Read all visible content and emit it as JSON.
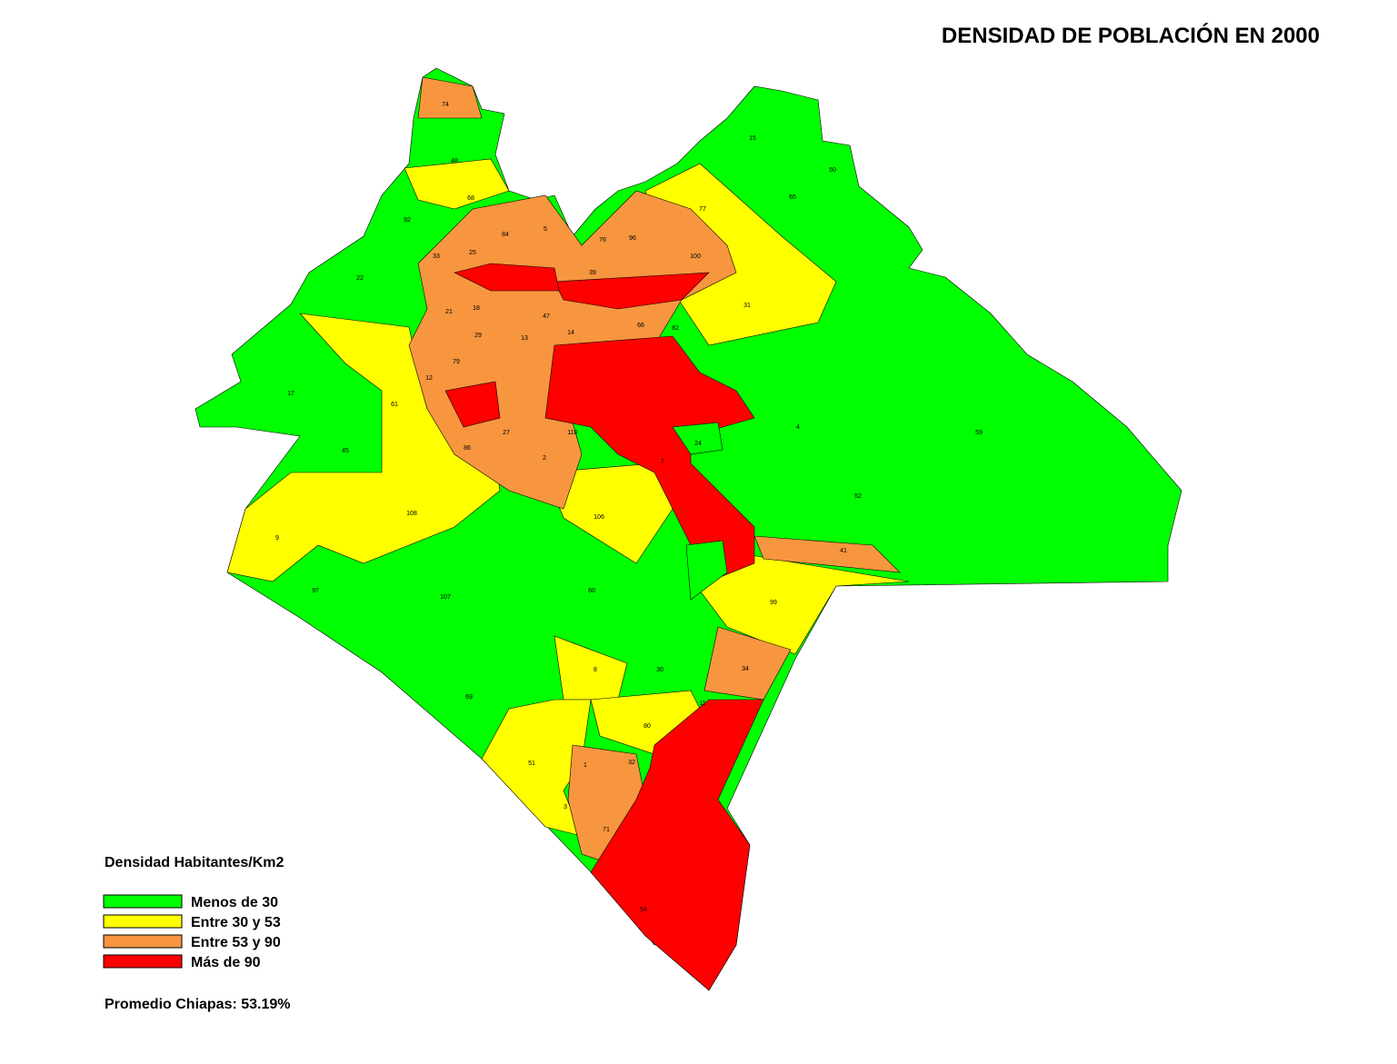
{
  "map": {
    "title": "DENSIDAD DE POBLACIÓN EN 2000",
    "legend": {
      "title": "Densidad Habitantes/Km2",
      "items": [
        {
          "name": "Menos de 30",
          "color": "#00ff00"
        },
        {
          "name": "Entre 30 y 53",
          "color": "#ffff00"
        },
        {
          "name": "Entre 53 y 90",
          "color": "#f7963f"
        },
        {
          "name": "Más de 90",
          "color": "#ff0000"
        }
      ]
    },
    "note": "Promedio Chiapas: 53.19%",
    "labels": [
      "74",
      "48",
      "68",
      "92",
      "33",
      "22",
      "77",
      "15",
      "50",
      "65",
      "100",
      "96",
      "76",
      "39",
      "31",
      "4",
      "59",
      "52",
      "17",
      "61",
      "45",
      "108",
      "9",
      "97",
      "107",
      "106",
      "60",
      "99",
      "41",
      "34",
      "8",
      "30",
      "69",
      "51",
      "3",
      "1",
      "32",
      "71",
      "54",
      "11",
      "80",
      "12",
      "79",
      "27",
      "2",
      "86",
      "13",
      "47",
      "21",
      "18",
      "29",
      "14",
      "66",
      "82",
      "24",
      "7",
      "110",
      "5",
      "84",
      "25"
    ]
  }
}
